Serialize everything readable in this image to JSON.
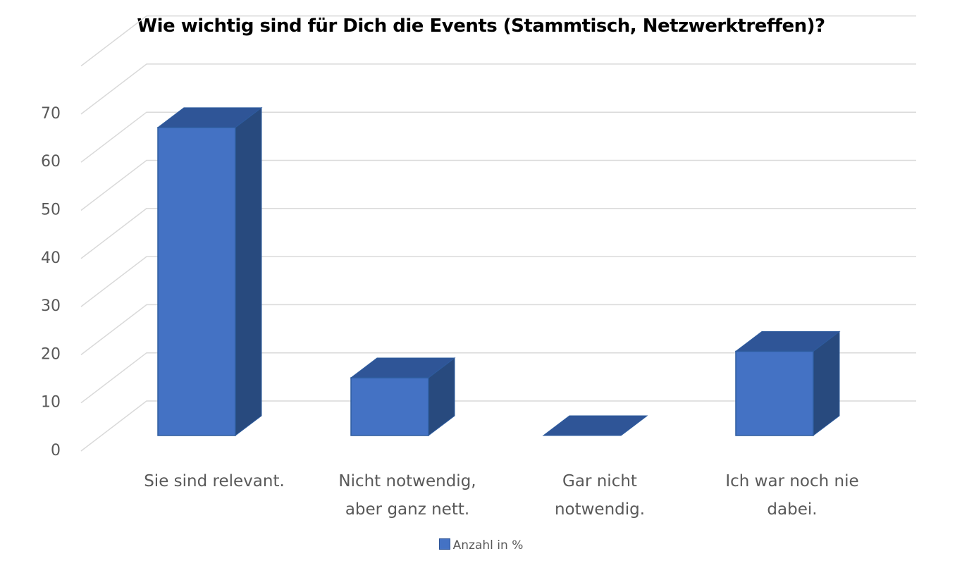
{
  "chart_data": {
    "type": "bar",
    "style": "3d-column",
    "title": "Wie wichtig sind für Dich die Events (Stammtisch, Netzwerktreffen)?",
    "categories": [
      [
        "Sie sind relevant."
      ],
      [
        "Nicht notwendig,",
        "aber ganz nett."
      ],
      [
        "Gar nicht",
        "notwendig."
      ],
      [
        "Ich war noch nie",
        "dabei."
      ]
    ],
    "series": [
      {
        "name": "Anzahl in %",
        "values": [
          64,
          12,
          0,
          17.5
        ],
        "color": "#4472C4"
      }
    ],
    "yticks": [
      "0",
      "10",
      "20",
      "30",
      "40",
      "50",
      "60",
      "70"
    ],
    "ylim": [
      0,
      80
    ],
    "grid": true,
    "legend": "bottom",
    "colors": {
      "front": "#4472C4",
      "top": "#2F5597",
      "side": "#284A7E",
      "edge": "#2E5C9E",
      "grid": "#D9D9D9"
    }
  }
}
